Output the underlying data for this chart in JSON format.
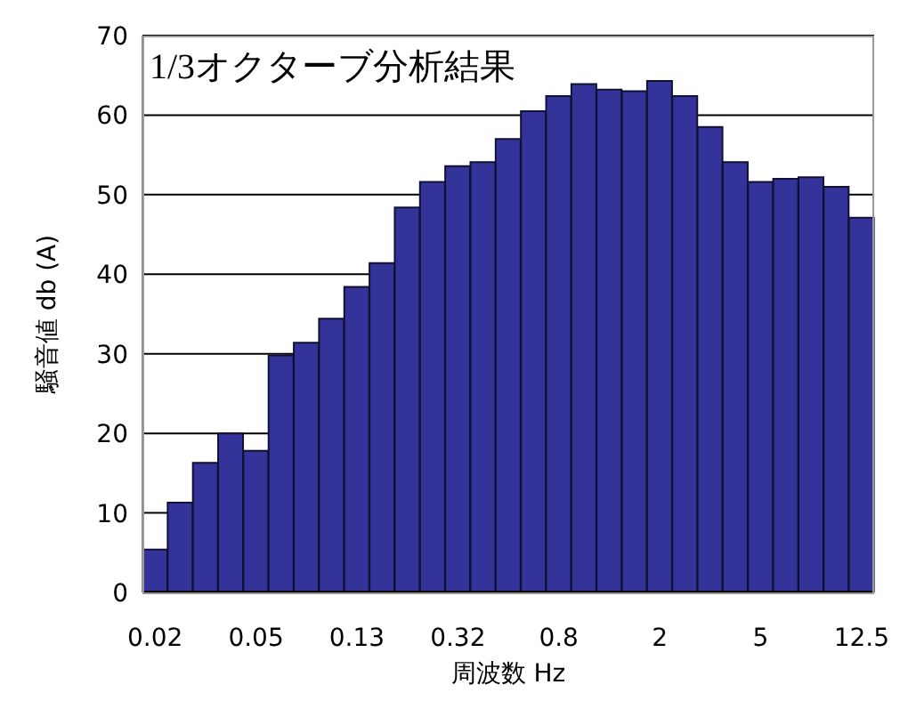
{
  "chart_data": {
    "type": "bar",
    "title": "1/3オクターブ分析結果",
    "xlabel": "周波数 Hz",
    "ylabel": "騒音値 db (A)",
    "categories": [
      "0.02",
      null,
      null,
      null,
      "0.05",
      null,
      null,
      null,
      "0.13",
      null,
      null,
      null,
      "0.32",
      null,
      null,
      null,
      "0.8",
      null,
      null,
      null,
      "2",
      null,
      null,
      null,
      "5",
      null,
      null,
      null,
      "12.5"
    ],
    "values": [
      5.4,
      11.3,
      16.3,
      20,
      17.8,
      29.8,
      31.4,
      34.4,
      38.4,
      41.4,
      48.4,
      51.6,
      53.6,
      54.1,
      57,
      60.5,
      62.4,
      63.9,
      63.2,
      63,
      64.3,
      62.4,
      58.5,
      54.1,
      51.6,
      52,
      52.2,
      51,
      47.1
    ],
    "color": "#333399",
    "ylim": [
      0,
      70
    ],
    "yticks": [
      0,
      10,
      20,
      30,
      40,
      50,
      60,
      70
    ],
    "grid": "y"
  }
}
